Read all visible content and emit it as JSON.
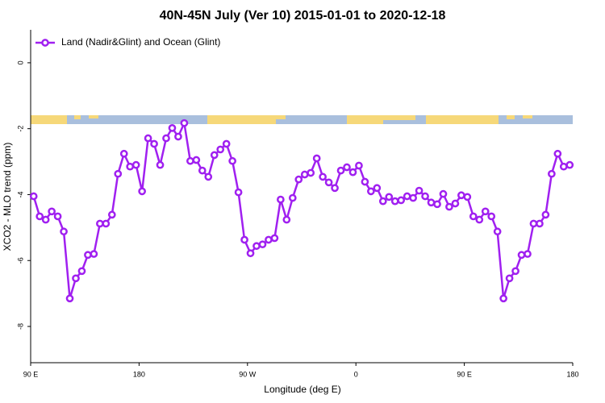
{
  "chart_data": {
    "type": "line",
    "title": "40N-45N July (Ver 10)   2015-01-01 to 2020-12-18",
    "xlabel": "Longitude (deg E)",
    "ylabel": "XCO2 - MLO trend (ppm)",
    "xlim": [
      90,
      540
    ],
    "xticks": [
      {
        "value": 90,
        "label": "90 E"
      },
      180,
      {
        "value": 270,
        "label": "90 W"
      },
      {
        "value": 360,
        "label": "0"
      },
      {
        "value": 450,
        "label": "90 E"
      },
      {
        "value": 540,
        "label": "180"
      }
    ],
    "ylim": [
      -9.1,
      1
    ],
    "yticks": [
      0,
      -2,
      -4,
      -6,
      -8
    ],
    "legend": "top-left",
    "x": [
      92.5,
      97.5,
      102.5,
      107.5,
      112.5,
      117.5,
      122.5,
      127.5,
      132.5,
      137.5,
      142.5,
      147.5,
      152.5,
      157.5,
      162.5,
      167.5,
      172.5,
      177.5,
      182.5,
      187.5,
      192.5,
      197.5,
      202.5,
      207.5,
      212.5,
      217.5,
      222.5,
      227.5,
      232.5,
      237.5,
      242.5,
      247.5,
      252.5,
      257.5,
      262.5,
      267.5,
      272.5,
      277.5,
      282.5,
      287.5,
      292.5,
      297.5,
      302.5,
      307.5,
      312.5,
      317.5,
      322.5,
      327.5,
      332.5,
      337.5,
      342.5,
      347.5,
      352.5,
      357.5,
      362.5,
      367.5,
      372.5,
      377.5,
      382.5,
      387.5,
      392.5,
      397.5,
      402.5,
      407.5,
      412.5,
      417.5,
      422.5,
      427.5,
      432.5,
      437.5,
      442.5,
      447.5,
      452.5,
      457.5,
      462.5,
      467.5,
      472.5,
      477.5,
      482.5,
      487.5,
      492.5,
      497.5,
      502.5,
      507.5,
      512.5,
      517.5,
      522.5,
      527.5,
      532.5,
      537.5
    ],
    "series": [
      {
        "name": "Land (Nadir&Glint) and Ocean (Glint)",
        "color": "#a020f0",
        "values": [
          -4.05,
          -4.66,
          -4.76,
          -4.51,
          -4.66,
          -5.12,
          -7.15,
          -6.54,
          -6.32,
          -5.83,
          -5.8,
          -4.88,
          -4.88,
          -4.61,
          -3.37,
          -2.76,
          -3.15,
          -3.1,
          -3.9,
          -2.29,
          -2.46,
          -3.1,
          -2.29,
          -1.98,
          -2.24,
          -1.83,
          -2.98,
          -2.95,
          -3.27,
          -3.46,
          -2.8,
          -2.63,
          -2.46,
          -2.98,
          -3.93,
          -5.37,
          -5.78,
          -5.56,
          -5.51,
          -5.37,
          -5.32,
          -4.15,
          -4.76,
          -4.1,
          -3.54,
          -3.39,
          -3.34,
          -2.9,
          -3.46,
          -3.63,
          -3.8,
          -3.27,
          -3.17,
          -3.32,
          -3.12,
          -3.61,
          -3.9,
          -3.8,
          -4.2,
          -4.07,
          -4.2,
          -4.17,
          -4.05,
          -4.1,
          -3.88,
          -4.05,
          -4.24,
          -4.29,
          -3.98,
          -4.37,
          -4.27,
          -4.02,
          -4.07,
          -4.66,
          -4.76,
          -4.51,
          -4.66,
          -5.12,
          -7.15,
          -6.54,
          -6.32,
          -5.83,
          -5.8,
          -4.88,
          -4.88,
          -4.61,
          -3.37,
          -2.76,
          -3.15,
          -3.1
        ]
      }
    ]
  }
}
